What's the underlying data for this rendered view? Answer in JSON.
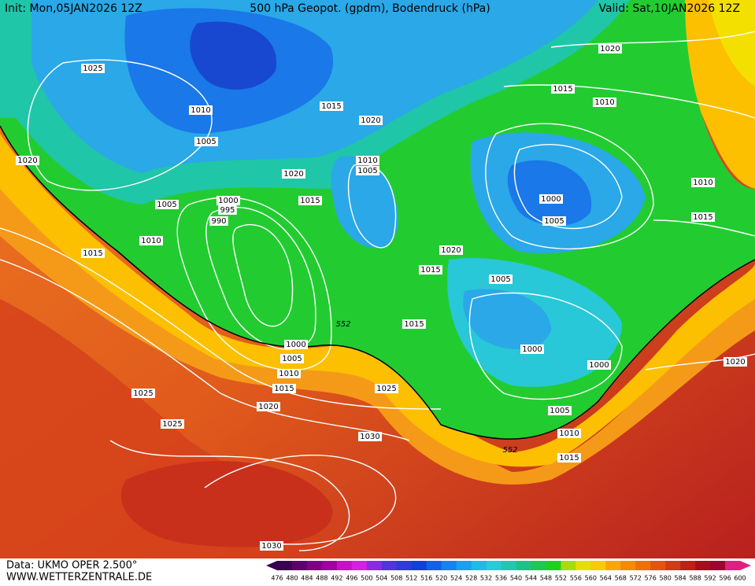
{
  "header": {
    "init": "Init: Mon,05JAN2026 12Z",
    "title": "500 hPa Geopot. (gpdm), Bodendruck (hPa)",
    "valid": "Valid: Sat,10JAN2026 12Z"
  },
  "isobar_labels": [
    "1025",
    "1020",
    "1015",
    "1010",
    "1015",
    "1010",
    "1020",
    "1005",
    "1020",
    "1010",
    "1005",
    "1020",
    "1010",
    "1000",
    "1015",
    "1000",
    "995",
    "1005",
    "990",
    "1005",
    "1015",
    "1010",
    "1015",
    "1020",
    "1015",
    "1005",
    "1015",
    "1000",
    "1000",
    "1005",
    "1000",
    "1020",
    "1010",
    "1015",
    "1025",
    "1025",
    "1020",
    "1005",
    "1025",
    "1030",
    "1010",
    "1015",
    "1030"
  ],
  "contour_labels": [
    "552",
    "552"
  ],
  "footer": {
    "source": "Data: UKMO OPER 2.500°",
    "site": "WWW.WETTERZENTRALE.DE"
  },
  "colorbar": {
    "labels": [
      "476",
      "480",
      "484",
      "488",
      "492",
      "496",
      "500",
      "504",
      "508",
      "512",
      "516",
      "520",
      "524",
      "528",
      "532",
      "536",
      "540",
      "544",
      "548",
      "552",
      "556",
      "560",
      "564",
      "568",
      "572",
      "576",
      "580",
      "584",
      "588",
      "592",
      "596",
      "600"
    ]
  }
}
